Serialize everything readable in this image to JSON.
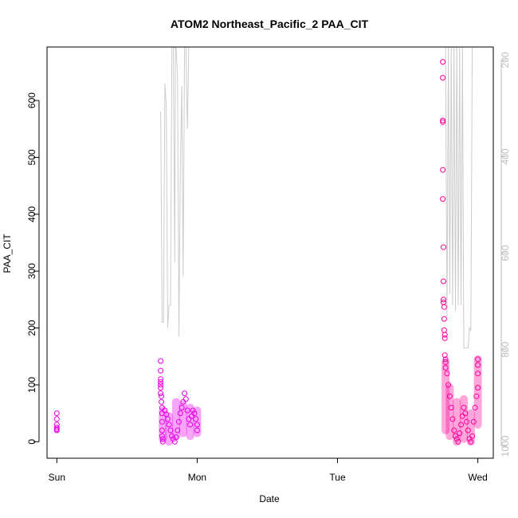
{
  "chart_data": {
    "type": "scatter",
    "title": "ATOM2 Northeast_Pacific_2 PAA_CIT",
    "xlabel": "Date",
    "ylabel": "PAA_CIT",
    "x_ticks": [
      "Sun",
      "Mon",
      "Tue",
      "Wed"
    ],
    "xlim_days": [
      -0.07,
      3.11
    ],
    "ylim": [
      -29,
      694
    ],
    "y_ticks": [
      0,
      100,
      200,
      300,
      400,
      500,
      600
    ],
    "right_axis": {
      "ticks": [
        200,
        400,
        600,
        800,
        1000
      ],
      "ylim": [
        1025,
        173
      ],
      "color": "#bebebe"
    },
    "grid": false,
    "colors": {
      "early": "#e600e6",
      "late": "#ff0099",
      "pressure_line": "#cccccc"
    },
    "series": [
      {
        "kind": "points",
        "points": [
          [
            0.0,
            50
          ],
          [
            0.0,
            40
          ],
          [
            0.0,
            30
          ],
          [
            0.0,
            25
          ],
          [
            0.0,
            22
          ],
          [
            0.0,
            20
          ],
          [
            0.74,
            142
          ],
          [
            0.74,
            125
          ],
          [
            0.74,
            110
          ],
          [
            0.74,
            105
          ],
          [
            0.74,
            100
          ],
          [
            0.74,
            95
          ],
          [
            0.74,
            85
          ],
          [
            0.745,
            80
          ],
          [
            0.745,
            70
          ],
          [
            0.75,
            60
          ],
          [
            0.75,
            50
          ],
          [
            0.75,
            35
          ],
          [
            0.75,
            20
          ],
          [
            0.75,
            10
          ],
          [
            0.755,
            5
          ],
          [
            0.755,
            0
          ],
          [
            0.77,
            55
          ],
          [
            0.78,
            48
          ],
          [
            0.79,
            40
          ],
          [
            0.8,
            30
          ],
          [
            0.81,
            20
          ],
          [
            0.82,
            10
          ],
          [
            0.83,
            5
          ],
          [
            0.84,
            0
          ],
          [
            0.85,
            8
          ],
          [
            0.86,
            20
          ],
          [
            0.87,
            35
          ],
          [
            0.88,
            50
          ],
          [
            0.89,
            60
          ],
          [
            0.9,
            70
          ],
          [
            0.91,
            85
          ],
          [
            0.92,
            75
          ],
          [
            0.93,
            55
          ],
          [
            0.94,
            40
          ],
          [
            0.95,
            30
          ],
          [
            0.96,
            45
          ],
          [
            0.97,
            55
          ],
          [
            0.98,
            50
          ],
          [
            0.99,
            40
          ],
          [
            1.0,
            30
          ],
          [
            1.0,
            20
          ]
        ],
        "band_segments": [
          [
            0.755,
            5,
            55
          ],
          [
            0.8,
            0,
            45
          ],
          [
            0.85,
            10,
            70
          ],
          [
            0.9,
            15,
            65
          ],
          [
            0.95,
            10,
            60
          ],
          [
            1.0,
            15,
            55
          ]
        ]
      },
      {
        "kind": "points",
        "points": [
          [
            2.75,
            668
          ],
          [
            2.75,
            640
          ],
          [
            2.75,
            565
          ],
          [
            2.75,
            562
          ],
          [
            2.75,
            478
          ],
          [
            2.75,
            427
          ],
          [
            2.755,
            342
          ],
          [
            2.755,
            282
          ],
          [
            2.755,
            250
          ],
          [
            2.755,
            245
          ],
          [
            2.76,
            237
          ],
          [
            2.76,
            216
          ],
          [
            2.76,
            196
          ],
          [
            2.765,
            188
          ],
          [
            2.765,
            182
          ],
          [
            2.765,
            152
          ],
          [
            2.77,
            145
          ],
          [
            2.77,
            140
          ],
          [
            2.77,
            130
          ],
          [
            2.78,
            120
          ],
          [
            2.79,
            100
          ],
          [
            2.8,
            80
          ],
          [
            2.81,
            60
          ],
          [
            2.82,
            40
          ],
          [
            2.83,
            20
          ],
          [
            2.84,
            10
          ],
          [
            2.85,
            5
          ],
          [
            2.86,
            0
          ],
          [
            2.87,
            15
          ],
          [
            2.88,
            30
          ],
          [
            2.89,
            45
          ],
          [
            2.9,
            60
          ],
          [
            2.91,
            50
          ],
          [
            2.92,
            35
          ],
          [
            2.93,
            20
          ],
          [
            2.94,
            5
          ],
          [
            2.95,
            0
          ],
          [
            2.96,
            10
          ],
          [
            2.97,
            35
          ],
          [
            2.98,
            60
          ],
          [
            2.99,
            80
          ],
          [
            3.0,
            95
          ],
          [
            3.0,
            120
          ],
          [
            3.0,
            135
          ],
          [
            3.0,
            145
          ]
        ],
        "band_segments": [
          [
            2.77,
            20,
            140
          ],
          [
            2.8,
            10,
            95
          ],
          [
            2.85,
            0,
            70
          ],
          [
            2.9,
            5,
            75
          ],
          [
            2.95,
            0,
            50
          ],
          [
            3.0,
            30,
            145
          ]
        ]
      },
      {
        "kind": "line",
        "points": [
          [
            0.74,
            580
          ],
          [
            0.745,
            420
          ],
          [
            0.75,
            210
          ],
          [
            0.76,
            210
          ],
          [
            0.77,
            630
          ],
          [
            0.78,
            590
          ],
          [
            0.79,
            200
          ],
          [
            0.8,
            240
          ],
          [
            0.81,
            240
          ],
          [
            0.82,
            694
          ],
          [
            0.83,
            694
          ],
          [
            0.84,
            315
          ],
          [
            0.845,
            694
          ],
          [
            0.85,
            694
          ],
          [
            0.86,
            640
          ],
          [
            0.87,
            185
          ],
          [
            0.88,
            480
          ],
          [
            0.89,
            625
          ],
          [
            0.9,
            290
          ],
          [
            0.91,
            694
          ],
          [
            0.92,
            694
          ],
          [
            0.93,
            550
          ],
          [
            0.94,
            694
          ],
          [
            2.77,
            694
          ],
          [
            2.78,
            220
          ],
          [
            2.79,
            694
          ],
          [
            2.8,
            260
          ],
          [
            2.81,
            694
          ],
          [
            2.82,
            240
          ],
          [
            2.83,
            694
          ],
          [
            2.84,
            230
          ],
          [
            2.85,
            694
          ],
          [
            2.86,
            240
          ],
          [
            2.87,
            694
          ],
          [
            2.88,
            240
          ],
          [
            2.89,
            694
          ],
          [
            2.9,
            165
          ],
          [
            2.91,
            165
          ],
          [
            2.92,
            165
          ],
          [
            2.93,
            165
          ],
          [
            2.94,
            200
          ],
          [
            2.95,
            195
          ],
          [
            2.96,
            694
          ],
          [
            2.97,
            694
          ]
        ]
      }
    ]
  }
}
